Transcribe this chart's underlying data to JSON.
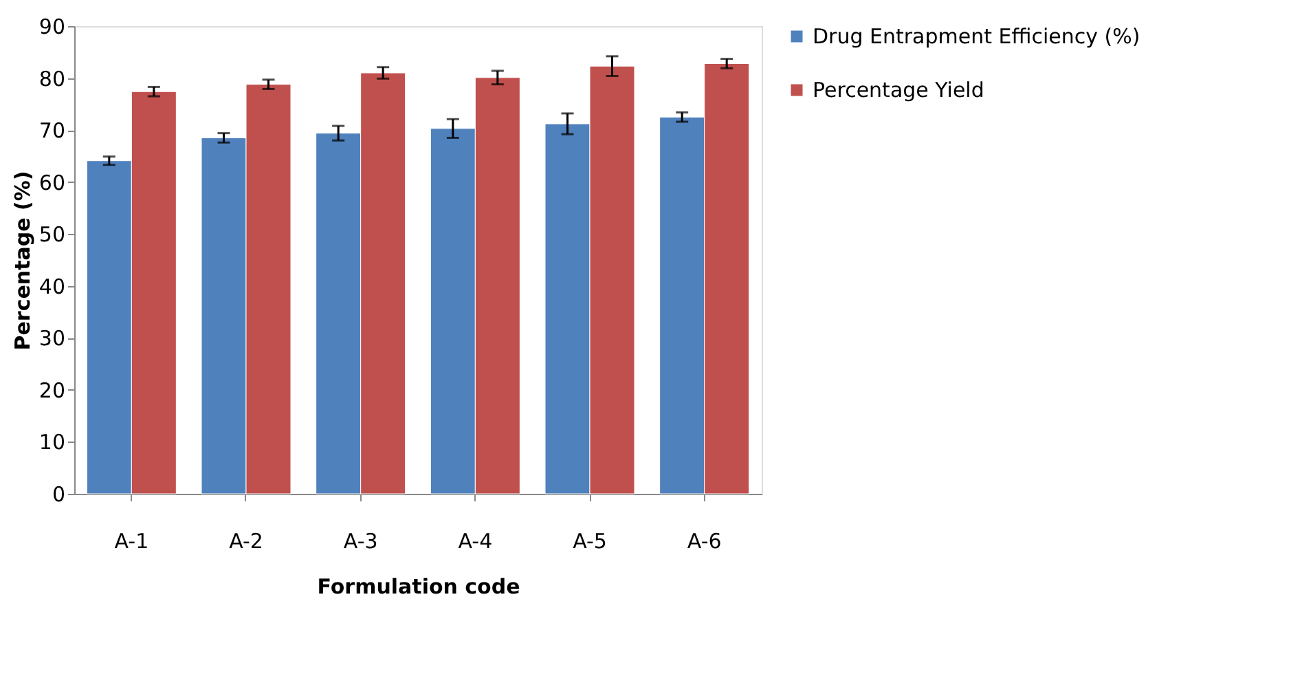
{
  "chart_data": {
    "type": "bar",
    "xlabel": "Formulation code",
    "ylabel": "Percentage (%)",
    "categories": [
      "A-1",
      "A-2",
      "A-3",
      "A-4",
      "A-5",
      "A-6"
    ],
    "series": [
      {
        "name": "Drug Entrapment Efficiency (%)",
        "color": "#4f81bd",
        "values": [
          64.1,
          68.5,
          69.4,
          70.3,
          71.2,
          72.5
        ],
        "errors": [
          0.8,
          0.9,
          1.4,
          1.8,
          2.0,
          0.9
        ]
      },
      {
        "name": "Percentage Yield",
        "color": "#c0504d",
        "values": [
          77.4,
          78.8,
          81.0,
          80.1,
          82.3,
          82.8
        ],
        "errors": [
          0.9,
          0.9,
          1.1,
          1.3,
          1.9,
          0.9
        ]
      }
    ],
    "ylim": [
      0,
      90
    ],
    "yticks": [
      0,
      10,
      20,
      30,
      40,
      50,
      60,
      70,
      80,
      90
    ],
    "grid": false,
    "legend": "right"
  }
}
